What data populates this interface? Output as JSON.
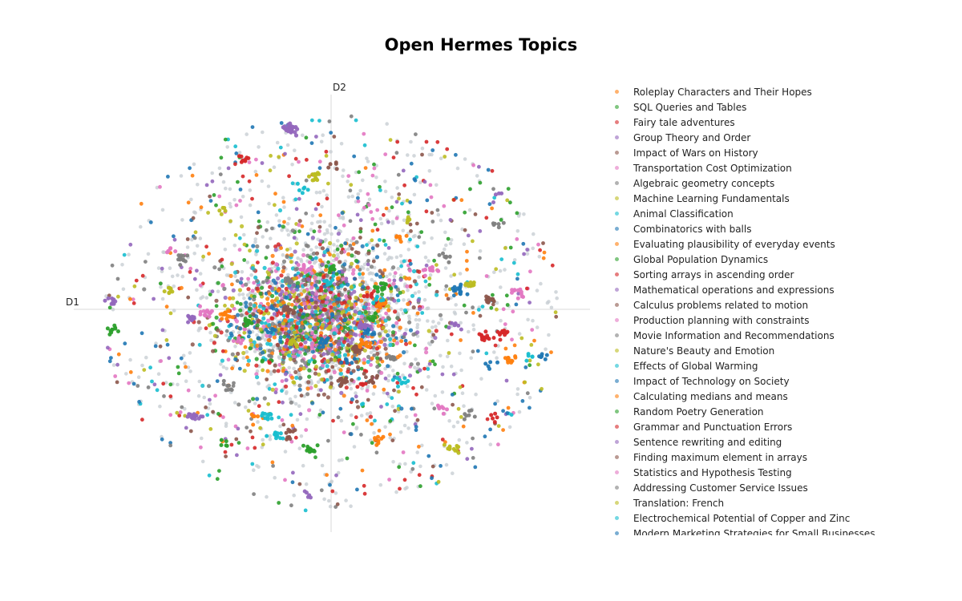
{
  "chart_data": {
    "type": "scatter",
    "title": "Open Hermes Topics",
    "xlabel": "D1",
    "ylabel": "D2",
    "xlim": [
      -1.0,
      1.0
    ],
    "ylim": [
      -1.0,
      1.0
    ],
    "grid": false,
    "legend_position": "right",
    "colors": [
      "#ff7f0e",
      "#2ca02c",
      "#d62728",
      "#9467bd",
      "#8c564b",
      "#e377c2",
      "#7f7f7f",
      "#bcbd22",
      "#17becf",
      "#1f77b4"
    ],
    "unclustered_color": "#c8ced3",
    "topics": [
      "Roleplay Characters and Their Hopes",
      "SQL Queries and Tables",
      "Fairy tale adventures",
      "Group Theory and Order",
      "Impact of Wars on History",
      "Transportation Cost Optimization",
      "Algebraic geometry concepts",
      "Machine Learning Fundamentals",
      "Animal Classification",
      "Combinatorics with balls",
      "Evaluating plausibility of everyday events",
      "Global Population Dynamics",
      "Sorting arrays in ascending order",
      "Mathematical operations and expressions",
      "Calculus problems related to motion",
      "Production planning with constraints",
      "Movie Information and Recommendations",
      "Nature's Beauty and Emotion",
      "Effects of Global Warming",
      "Impact of Technology on Society",
      "Calculating medians and means",
      "Random Poetry Generation",
      "Grammar and Punctuation Errors",
      "Sentence rewriting and editing",
      "Finding maximum element in arrays",
      "Statistics and Hypothesis Testing",
      "Addressing Customer Service Issues",
      "Translation: French",
      "Electrochemical Potential of Copper and Zinc",
      "Modern Marketing Strategies for Small Businesses"
    ]
  }
}
